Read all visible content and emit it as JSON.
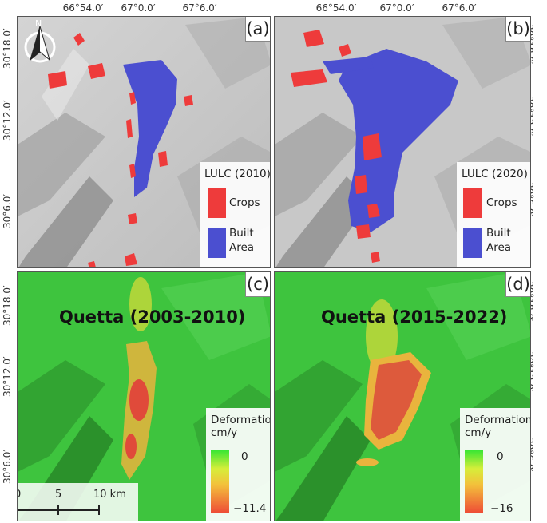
{
  "coords": {
    "lon_ticks": [
      "66°54.0′",
      "67°0.0′",
      "67°6.0′"
    ],
    "lat_ticks_top": [
      "30°18.0′",
      "30°12.0′",
      "30°6.0′"
    ],
    "lat_ticks_bottom": [
      "30°18.0′",
      "30°12.0′",
      "30°6.0′"
    ]
  },
  "north_arrow": {
    "label": "N"
  },
  "panels": {
    "a": {
      "label": "(a)",
      "legend_title": "LULC (2010)",
      "crops": "Crops",
      "built": "Built",
      "built2": "Area"
    },
    "b": {
      "label": "(b)",
      "legend_title": "LULC (2020)",
      "crops": "Crops",
      "built": "Built",
      "built2": "Area"
    },
    "c": {
      "label": "(c)",
      "title": "Quetta (2003-2010)",
      "legend_title": "Deformation",
      "unit": "cm/y",
      "max": "0",
      "min": "−11.4"
    },
    "d": {
      "label": "(d)",
      "title": "Quetta (2015-2022)",
      "legend_title": "Deformation",
      "unit": "cm/y",
      "max": "0",
      "min": "−16"
    }
  },
  "scale_bar": {
    "ticks": [
      "0",
      "5",
      "10 km"
    ]
  },
  "colors": {
    "crops": "#ee3b3b",
    "built": "#4b4fd0",
    "deform_zero": "#33e633",
    "deform_max": "#ee4a36"
  }
}
